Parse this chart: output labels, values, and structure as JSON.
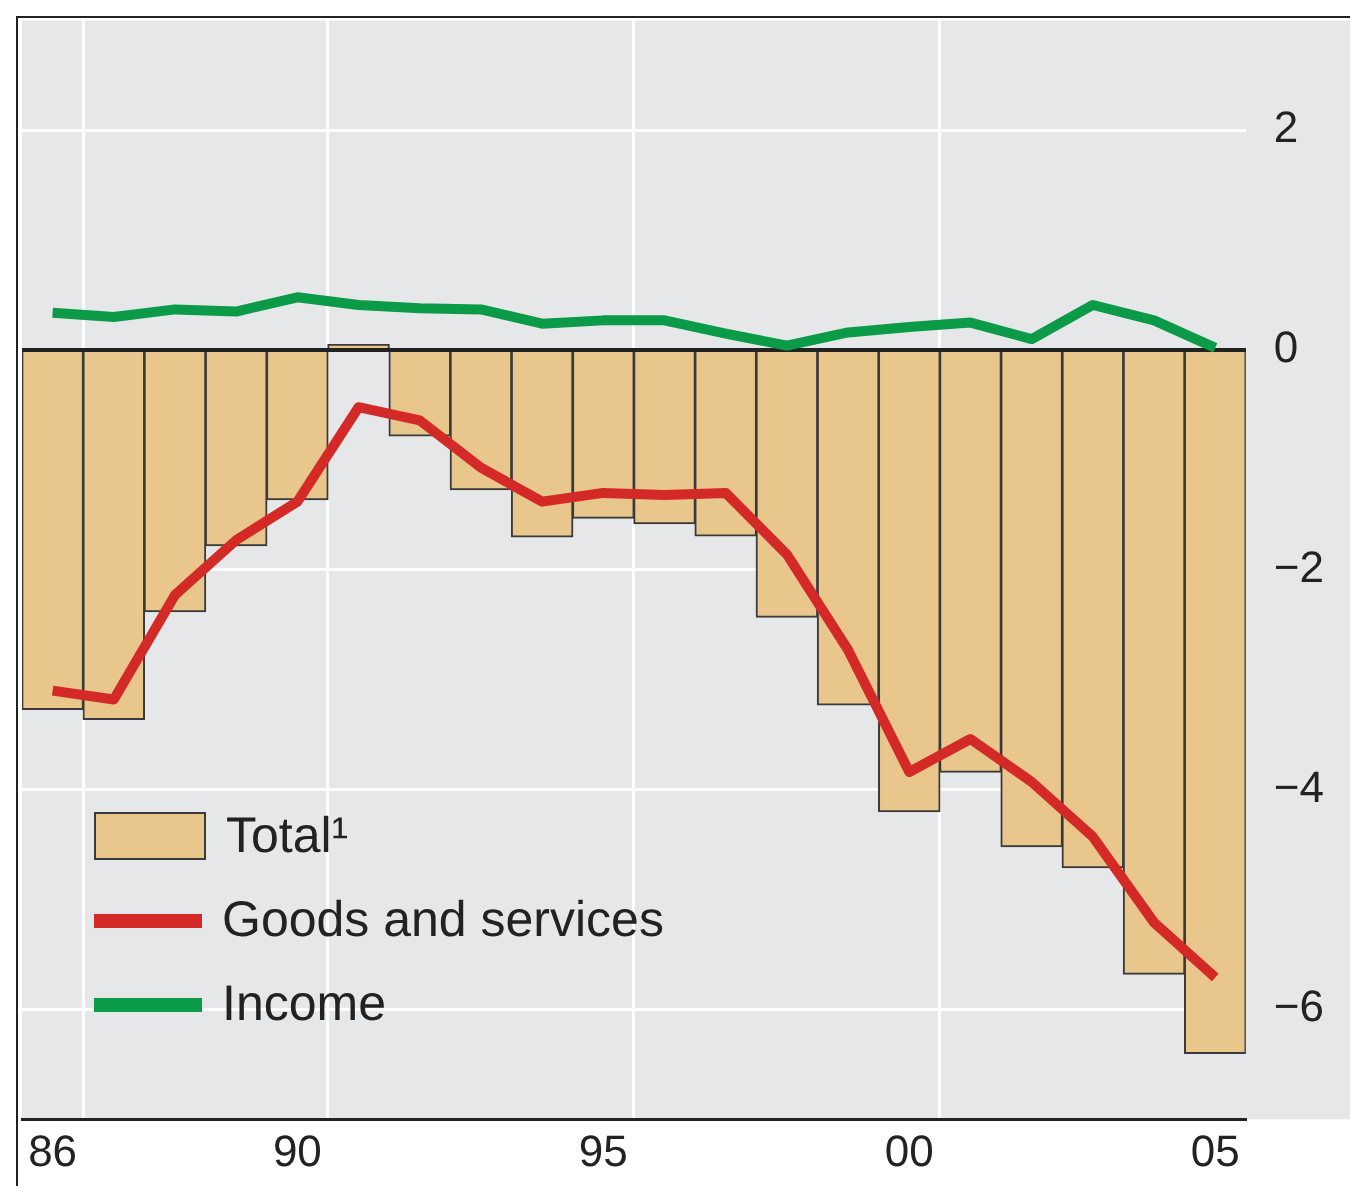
{
  "chart_data": {
    "type": "bar",
    "categories": [
      "86",
      null,
      null,
      null,
      "90",
      null,
      null,
      null,
      null,
      "95",
      null,
      null,
      null,
      null,
      "00",
      null,
      null,
      null,
      null,
      "05"
    ],
    "series": [
      {
        "name": "Total¹",
        "color": "#e8c68c",
        "values": [
          -3.27,
          -3.36,
          -2.38,
          -1.78,
          -1.36,
          0.05,
          -0.78,
          -1.27,
          -1.7,
          -1.53,
          -1.58,
          -1.69,
          -2.43,
          -3.23,
          -4.2,
          -3.84,
          -4.52,
          -4.71,
          -5.68,
          -6.4
        ]
      },
      {
        "name": "Goods and services",
        "type": "line",
        "color": "#d42a27",
        "values": [
          -3.1,
          -3.18,
          -2.23,
          -1.73,
          -1.38,
          -0.52,
          -0.64,
          -1.07,
          -1.38,
          -1.3,
          -1.32,
          -1.3,
          -1.86,
          -2.73,
          -3.84,
          -3.54,
          -3.93,
          -4.43,
          -5.21,
          -5.71
        ]
      },
      {
        "name": "Income",
        "type": "line",
        "color": "#0a9a48",
        "values": [
          0.34,
          0.3,
          0.37,
          0.35,
          0.48,
          0.41,
          0.38,
          0.37,
          0.24,
          0.27,
          0.27,
          0.15,
          0.04,
          0.16,
          0.21,
          0.25,
          0.1,
          0.41,
          0.27,
          0.02
        ]
      }
    ],
    "ylim": [
      -7,
      3
    ],
    "yticks": [
      -6,
      -4,
      -2,
      0,
      2
    ],
    "grid": true,
    "legend": "bottom left",
    "marker": "none"
  }
}
